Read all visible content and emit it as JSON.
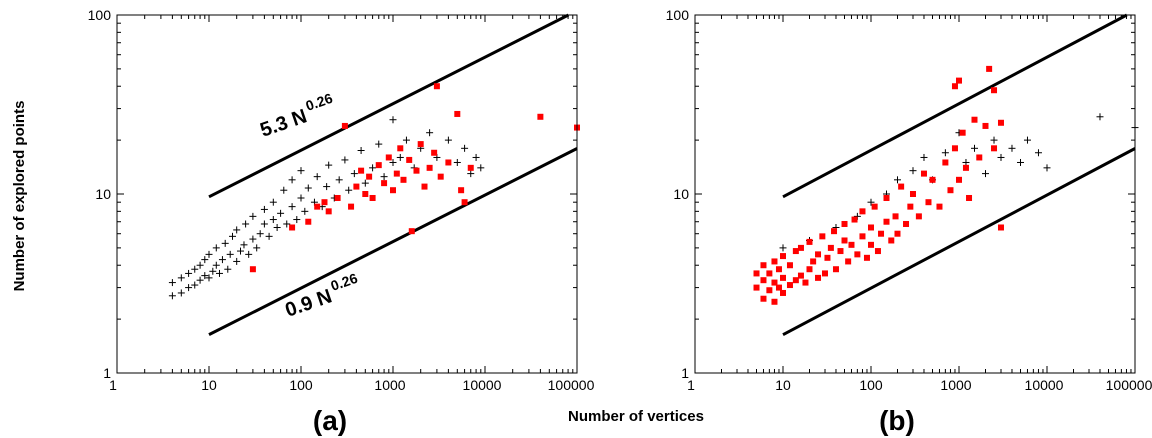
{
  "figure": {
    "xlabel": "Number of vertices",
    "ylabel": "Number of explored points"
  },
  "chart_data": [
    {
      "type": "scatter",
      "panel_label": "(a)",
      "x_scale": "log",
      "y_scale": "log",
      "xlim": [
        1,
        100000
      ],
      "ylim": [
        1,
        100
      ],
      "x_ticks": [
        "1",
        "10",
        "100",
        "1000",
        "10000",
        "100000"
      ],
      "y_ticks": [
        "1",
        "10",
        "100"
      ],
      "fit_lines": [
        {
          "label": "5.3 N",
          "exponent": "0.26",
          "coef": 5.3,
          "power": 0.26,
          "x_range": [
            10,
            100000
          ]
        },
        {
          "label": "0.9 N",
          "exponent": "0.26",
          "coef": 0.9,
          "power": 0.26,
          "x_range": [
            10,
            100000
          ]
        }
      ],
      "series": [
        {
          "marker": "plus",
          "color": "#000000",
          "points": [
            [
              4,
              2.7
            ],
            [
              4,
              3.2
            ],
            [
              5,
              2.8
            ],
            [
              5,
              3.4
            ],
            [
              6,
              3.0
            ],
            [
              6,
              3.6
            ],
            [
              7,
              3.1
            ],
            [
              7,
              3.8
            ],
            [
              8,
              3.3
            ],
            [
              8,
              4.0
            ],
            [
              9,
              3.5
            ],
            [
              9,
              4.3
            ],
            [
              10,
              3.4
            ],
            [
              10,
              4.6
            ],
            [
              11,
              3.7
            ],
            [
              12,
              4.0
            ],
            [
              12,
              5.0
            ],
            [
              13,
              3.6
            ],
            [
              14,
              4.3
            ],
            [
              15,
              5.3
            ],
            [
              16,
              3.8
            ],
            [
              17,
              4.6
            ],
            [
              18,
              5.8
            ],
            [
              20,
              4.2
            ],
            [
              20,
              6.3
            ],
            [
              22,
              4.8
            ],
            [
              24,
              5.2
            ],
            [
              25,
              6.8
            ],
            [
              27,
              4.6
            ],
            [
              30,
              5.6
            ],
            [
              30,
              7.5
            ],
            [
              33,
              5.0
            ],
            [
              36,
              6.0
            ],
            [
              40,
              6.8
            ],
            [
              40,
              8.2
            ],
            [
              45,
              5.8
            ],
            [
              50,
              7.2
            ],
            [
              50,
              9.0
            ],
            [
              55,
              6.5
            ],
            [
              60,
              7.8
            ],
            [
              65,
              10.5
            ],
            [
              70,
              6.8
            ],
            [
              80,
              8.5
            ],
            [
              80,
              12.0
            ],
            [
              90,
              7.2
            ],
            [
              100,
              9.5
            ],
            [
              100,
              13.5
            ],
            [
              110,
              8.0
            ],
            [
              120,
              10.8
            ],
            [
              140,
              9.0
            ],
            [
              150,
              12.5
            ],
            [
              170,
              8.5
            ],
            [
              190,
              11.0
            ],
            [
              200,
              14.5
            ],
            [
              230,
              9.5
            ],
            [
              260,
              12.0
            ],
            [
              300,
              15.5
            ],
            [
              330,
              10.5
            ],
            [
              380,
              13.0
            ],
            [
              450,
              17.5
            ],
            [
              500,
              11.5
            ],
            [
              600,
              14.0
            ],
            [
              700,
              19.0
            ],
            [
              800,
              12.5
            ],
            [
              1000,
              26.0
            ],
            [
              1000,
              15.0
            ],
            [
              1200,
              16.0
            ],
            [
              1400,
              20.0
            ],
            [
              1700,
              14.0
            ],
            [
              2000,
              18.0
            ],
            [
              2500,
              22.0
            ],
            [
              3000,
              16.0
            ],
            [
              4000,
              20.0
            ],
            [
              5000,
              15.0
            ],
            [
              6000,
              18.0
            ],
            [
              7000,
              13.0
            ],
            [
              8000,
              16.0
            ],
            [
              9000,
              14.0
            ]
          ]
        },
        {
          "marker": "square",
          "color": "#ff0000",
          "points": [
            [
              30,
              3.8
            ],
            [
              80,
              6.5
            ],
            [
              120,
              7.0
            ],
            [
              150,
              8.5
            ],
            [
              180,
              9.0
            ],
            [
              200,
              8.0
            ],
            [
              250,
              9.5
            ],
            [
              300,
              24.0
            ],
            [
              350,
              8.5
            ],
            [
              400,
              11.0
            ],
            [
              450,
              13.5
            ],
            [
              500,
              10.0
            ],
            [
              550,
              12.5
            ],
            [
              600,
              9.5
            ],
            [
              700,
              14.5
            ],
            [
              800,
              11.5
            ],
            [
              900,
              16.0
            ],
            [
              1000,
              10.5
            ],
            [
              1100,
              13.0
            ],
            [
              1200,
              18.0
            ],
            [
              1300,
              12.0
            ],
            [
              1500,
              15.5
            ],
            [
              1600,
              6.2
            ],
            [
              1800,
              13.5
            ],
            [
              2000,
              19.0
            ],
            [
              2200,
              11.0
            ],
            [
              2500,
              14.0
            ],
            [
              2800,
              17.0
            ],
            [
              3000,
              40.0
            ],
            [
              3300,
              12.5
            ],
            [
              4000,
              15.0
            ],
            [
              5000,
              28.0
            ],
            [
              5500,
              10.5
            ],
            [
              6000,
              9.0
            ],
            [
              7000,
              14.0
            ],
            [
              40000,
              27.0
            ],
            [
              100000,
              23.5
            ]
          ]
        }
      ]
    },
    {
      "type": "scatter",
      "panel_label": "(b)",
      "x_scale": "log",
      "y_scale": "log",
      "xlim": [
        1,
        100000
      ],
      "ylim": [
        1,
        100
      ],
      "x_ticks": [
        "1",
        "10",
        "100",
        "1000",
        "10000",
        "100000"
      ],
      "y_ticks": [
        "1",
        "10",
        "100"
      ],
      "fit_lines": [
        {
          "label": "",
          "exponent": "",
          "coef": 5.3,
          "power": 0.26,
          "x_range": [
            10,
            100000
          ]
        },
        {
          "label": "",
          "exponent": "",
          "coef": 0.9,
          "power": 0.26,
          "x_range": [
            10,
            100000
          ]
        }
      ],
      "series": [
        {
          "marker": "plus",
          "color": "#000000",
          "points": [
            [
              10,
              5.0
            ],
            [
              20,
              5.5
            ],
            [
              40,
              6.5
            ],
            [
              70,
              7.5
            ],
            [
              100,
              9.0
            ],
            [
              150,
              10.0
            ],
            [
              200,
              12.0
            ],
            [
              300,
              13.5
            ],
            [
              400,
              16.0
            ],
            [
              500,
              12.0
            ],
            [
              700,
              17.0
            ],
            [
              1000,
              22.0
            ],
            [
              1200,
              15.0
            ],
            [
              1500,
              18.0
            ],
            [
              2000,
              13.0
            ],
            [
              2500,
              20.0
            ],
            [
              3000,
              16.0
            ],
            [
              4000,
              18.0
            ],
            [
              5000,
              15.0
            ],
            [
              6000,
              20.0
            ],
            [
              8000,
              17.0
            ],
            [
              10000,
              14.0
            ],
            [
              40000,
              27.0
            ],
            [
              100000,
              23.5
            ]
          ]
        },
        {
          "marker": "square",
          "color": "#ff0000",
          "points": [
            [
              5,
              3.0
            ],
            [
              5,
              3.6
            ],
            [
              6,
              2.6
            ],
            [
              6,
              3.3
            ],
            [
              6,
              4.0
            ],
            [
              7,
              2.9
            ],
            [
              7,
              3.6
            ],
            [
              8,
              2.5
            ],
            [
              8,
              3.2
            ],
            [
              8,
              4.2
            ],
            [
              9,
              3.0
            ],
            [
              9,
              3.8
            ],
            [
              10,
              2.8
            ],
            [
              10,
              3.4
            ],
            [
              10,
              4.5
            ],
            [
              12,
              3.1
            ],
            [
              12,
              4.0
            ],
            [
              14,
              3.3
            ],
            [
              14,
              4.8
            ],
            [
              16,
              3.5
            ],
            [
              16,
              5.0
            ],
            [
              18,
              3.2
            ],
            [
              20,
              3.8
            ],
            [
              20,
              5.4
            ],
            [
              22,
              4.2
            ],
            [
              25,
              3.4
            ],
            [
              25,
              4.6
            ],
            [
              28,
              5.8
            ],
            [
              30,
              3.6
            ],
            [
              32,
              4.4
            ],
            [
              35,
              5.0
            ],
            [
              38,
              6.2
            ],
            [
              40,
              3.8
            ],
            [
              45,
              4.8
            ],
            [
              50,
              5.5
            ],
            [
              50,
              6.8
            ],
            [
              55,
              4.2
            ],
            [
              60,
              5.2
            ],
            [
              65,
              7.2
            ],
            [
              70,
              4.6
            ],
            [
              80,
              5.8
            ],
            [
              80,
              8.0
            ],
            [
              90,
              4.4
            ],
            [
              100,
              5.2
            ],
            [
              100,
              6.5
            ],
            [
              110,
              8.5
            ],
            [
              120,
              4.8
            ],
            [
              130,
              6.0
            ],
            [
              150,
              7.0
            ],
            [
              150,
              9.5
            ],
            [
              170,
              5.5
            ],
            [
              190,
              7.5
            ],
            [
              200,
              6.0
            ],
            [
              220,
              11.0
            ],
            [
              250,
              6.8
            ],
            [
              280,
              8.5
            ],
            [
              300,
              10.0
            ],
            [
              350,
              7.5
            ],
            [
              400,
              13.0
            ],
            [
              450,
              9.0
            ],
            [
              500,
              12.0
            ],
            [
              600,
              8.5
            ],
            [
              700,
              15.0
            ],
            [
              800,
              10.5
            ],
            [
              900,
              18.0
            ],
            [
              900,
              40.0
            ],
            [
              1000,
              43.0
            ],
            [
              1000,
              12.0
            ],
            [
              1100,
              22.0
            ],
            [
              1200,
              14.0
            ],
            [
              1300,
              9.5
            ],
            [
              1500,
              26.0
            ],
            [
              1700,
              16.0
            ],
            [
              2000,
              24.0
            ],
            [
              2200,
              50.0
            ],
            [
              2500,
              38.0
            ],
            [
              2500,
              18.0
            ],
            [
              3000,
              25.0
            ],
            [
              3000,
              6.5
            ]
          ]
        }
      ]
    }
  ]
}
